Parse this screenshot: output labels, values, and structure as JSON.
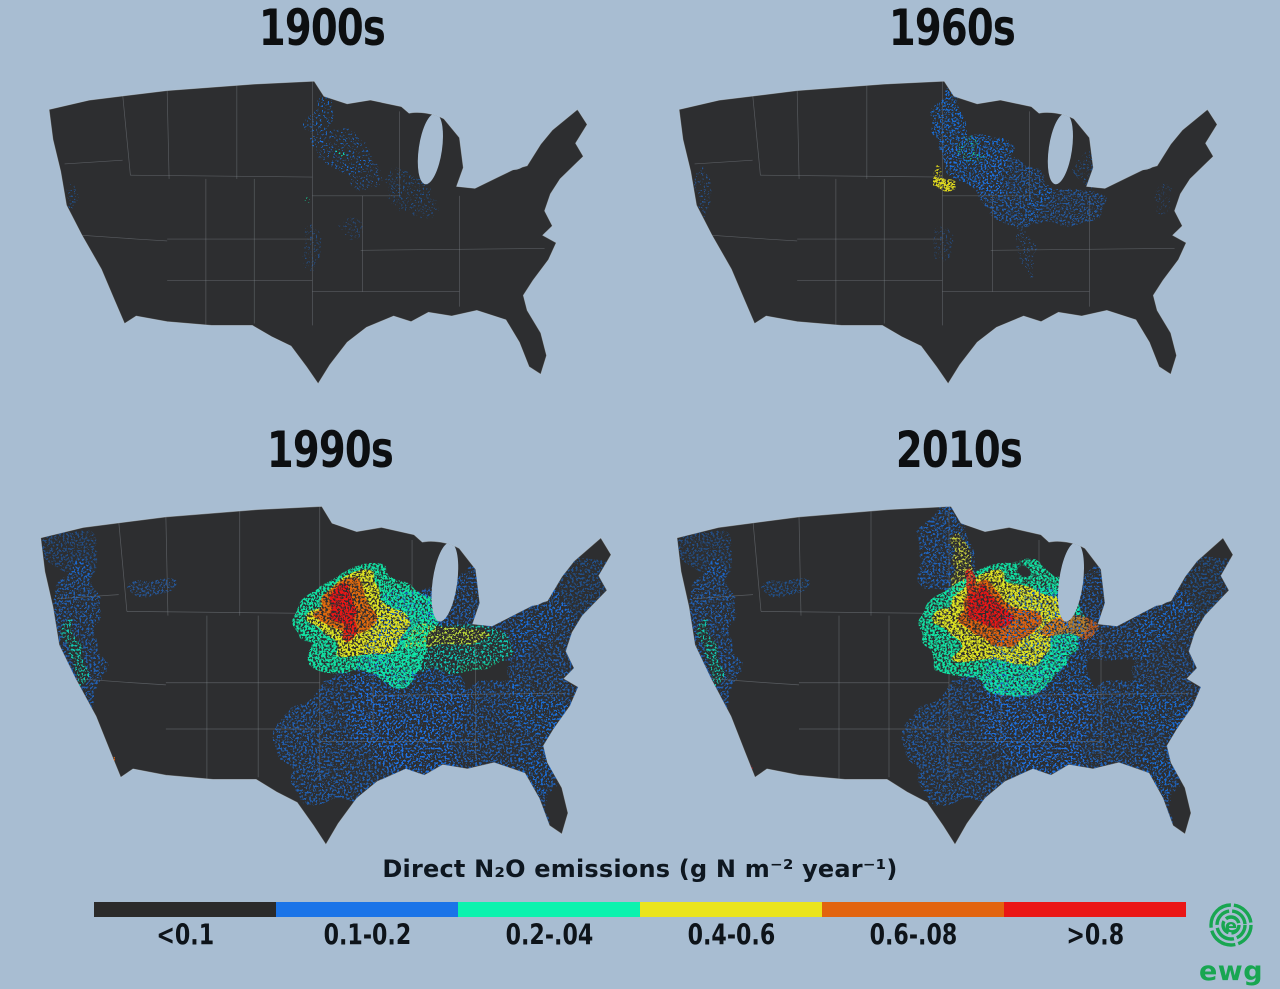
{
  "background": "#a8bdd2",
  "map": {
    "land_color": "#2d2e30",
    "border_color": "#8d949b",
    "water_color": "#a8bdd2",
    "coast_color": "#c9d4dc"
  },
  "panels": [
    {
      "id": "1900s",
      "title": "1900s",
      "hotspots": [
        [
          1,
          306,
          70,
          9,
          32,
          0.85,
          "s"
        ],
        [
          1,
          330,
          104,
          26,
          30,
          0.8,
          "s"
        ],
        [
          1,
          352,
          128,
          22,
          18,
          0.6,
          "s"
        ],
        [
          1,
          396,
          140,
          22,
          26,
          0.5,
          "s"
        ],
        [
          1,
          416,
          168,
          14,
          16,
          0.4,
          "s"
        ],
        [
          1,
          300,
          204,
          10,
          26,
          0.45,
          "s"
        ],
        [
          1,
          338,
          184,
          10,
          14,
          0.35,
          "s"
        ],
        [
          1,
          50,
          150,
          5,
          16,
          0.5,
          "s"
        ],
        [
          2,
          334,
          108,
          4,
          4,
          0.9,
          "s"
        ],
        [
          2,
          292,
          148,
          3,
          3,
          0.8,
          "s"
        ]
      ]
    },
    {
      "id": "1960s",
      "title": "1960s",
      "hotspots": [
        [
          1,
          308,
          74,
          15,
          40,
          0.9,
          "m"
        ],
        [
          1,
          338,
          110,
          34,
          34,
          0.9,
          "m"
        ],
        [
          1,
          372,
          146,
          38,
          28,
          0.7,
          "m"
        ],
        [
          1,
          424,
          156,
          40,
          22,
          0.6,
          "m"
        ],
        [
          1,
          452,
          120,
          14,
          20,
          0.5,
          "s"
        ],
        [
          1,
          388,
          204,
          8,
          36,
          0.55,
          "s"
        ],
        [
          1,
          300,
          200,
          12,
          20,
          0.4,
          "s"
        ],
        [
          1,
          52,
          150,
          6,
          28,
          0.55,
          "s"
        ],
        [
          1,
          528,
          150,
          9,
          18,
          0.35,
          "s"
        ],
        [
          2,
          330,
          104,
          13,
          18,
          0.75,
          "s"
        ],
        [
          3,
          302,
          140,
          7,
          11,
          0.95,
          "d"
        ],
        [
          3,
          296,
          122,
          4,
          7,
          0.8,
          "m"
        ]
      ]
    },
    {
      "id": "1990s",
      "title": "1990s",
      "hotspots": [
        [
          1,
          390,
          200,
          55,
          88,
          0.85,
          "m"
        ],
        [
          1,
          470,
          252,
          108,
          54,
          0.7,
          "m"
        ],
        [
          1,
          524,
          188,
          42,
          66,
          0.65,
          "m"
        ],
        [
          1,
          468,
          130,
          68,
          44,
          0.7,
          "m"
        ],
        [
          1,
          556,
          108,
          36,
          36,
          0.5,
          "m"
        ],
        [
          1,
          330,
          255,
          74,
          60,
          0.7,
          "m"
        ],
        [
          1,
          62,
          170,
          24,
          92,
          0.7,
          "m"
        ],
        [
          1,
          135,
          104,
          26,
          12,
          0.55,
          "m"
        ],
        [
          1,
          60,
          70,
          28,
          26,
          0.45,
          "m"
        ],
        [
          1,
          505,
          298,
          20,
          40,
          0.6,
          "m"
        ],
        [
          2,
          60,
          165,
          7,
          30,
          0.7,
          "m"
        ],
        [
          2,
          348,
          142,
          66,
          54,
          0.9,
          "d"
        ],
        [
          2,
          428,
          158,
          56,
          26,
          0.7,
          "m"
        ],
        [
          3,
          340,
          134,
          46,
          38,
          0.95,
          "d"
        ],
        [
          3,
          418,
          150,
          42,
          15,
          0.8,
          "m"
        ],
        [
          4,
          326,
          127,
          30,
          24,
          0.95,
          "d"
        ],
        [
          4,
          100,
          272,
          2,
          5,
          0.9,
          "d"
        ],
        [
          5,
          318,
          124,
          15,
          17,
          1,
          "d"
        ],
        [
          5,
          322,
          146,
          7,
          15,
          0.9,
          "d"
        ]
      ]
    },
    {
      "id": "2010s",
      "title": "2010s",
      "hotspots": [
        [
          1,
          392,
          198,
          55,
          90,
          0.85,
          "m"
        ],
        [
          1,
          470,
          252,
          108,
          54,
          0.7,
          "m"
        ],
        [
          1,
          524,
          186,
          42,
          66,
          0.6,
          "m"
        ],
        [
          1,
          470,
          128,
          68,
          44,
          0.7,
          "m"
        ],
        [
          1,
          556,
          106,
          36,
          36,
          0.5,
          "m"
        ],
        [
          1,
          328,
          255,
          74,
          60,
          0.65,
          "m"
        ],
        [
          1,
          62,
          170,
          24,
          92,
          0.7,
          "m"
        ],
        [
          1,
          135,
          104,
          26,
          12,
          0.5,
          "m"
        ],
        [
          1,
          60,
          70,
          28,
          26,
          0.45,
          "m"
        ],
        [
          1,
          505,
          298,
          20,
          40,
          0.6,
          "m"
        ],
        [
          1,
          298,
          70,
          26,
          42,
          0.75,
          "m"
        ],
        [
          2,
          60,
          165,
          7,
          30,
          0.7,
          "m"
        ],
        [
          2,
          358,
          146,
          80,
          58,
          0.9,
          "d"
        ],
        [
          3,
          354,
          138,
          62,
          42,
          0.95,
          "d"
        ],
        [
          3,
          310,
          82,
          9,
          36,
          0.8,
          "m"
        ],
        [
          4,
          348,
          132,
          44,
          26,
          1,
          "d"
        ],
        [
          4,
          420,
          148,
          28,
          11,
          0.8,
          "d"
        ],
        [
          5,
          338,
          127,
          27,
          17,
          1,
          "d"
        ],
        [
          5,
          318,
          104,
          7,
          18,
          0.85,
          "d"
        ],
        [
          5,
          104,
          282,
          2,
          4,
          0.9,
          "d"
        ]
      ]
    }
  ],
  "legend": {
    "title": "Direct N₂O emissions (g N m⁻² year⁻¹)",
    "segments": [
      {
        "label": "<0.1",
        "color": "#2b2b2b"
      },
      {
        "label": "0.1-0.2",
        "color": "#1b74e8"
      },
      {
        "label": "0.2-.04",
        "color": "#0cf2ae"
      },
      {
        "label": "0.4-0.6",
        "color": "#eae41c"
      },
      {
        "label": "0.6-.08",
        "color": "#e2640f"
      },
      {
        "label": ">0.8",
        "color": "#ea1616"
      }
    ]
  },
  "logo": {
    "monogram": "e",
    "text": "ewg",
    "color": "#18a651"
  }
}
